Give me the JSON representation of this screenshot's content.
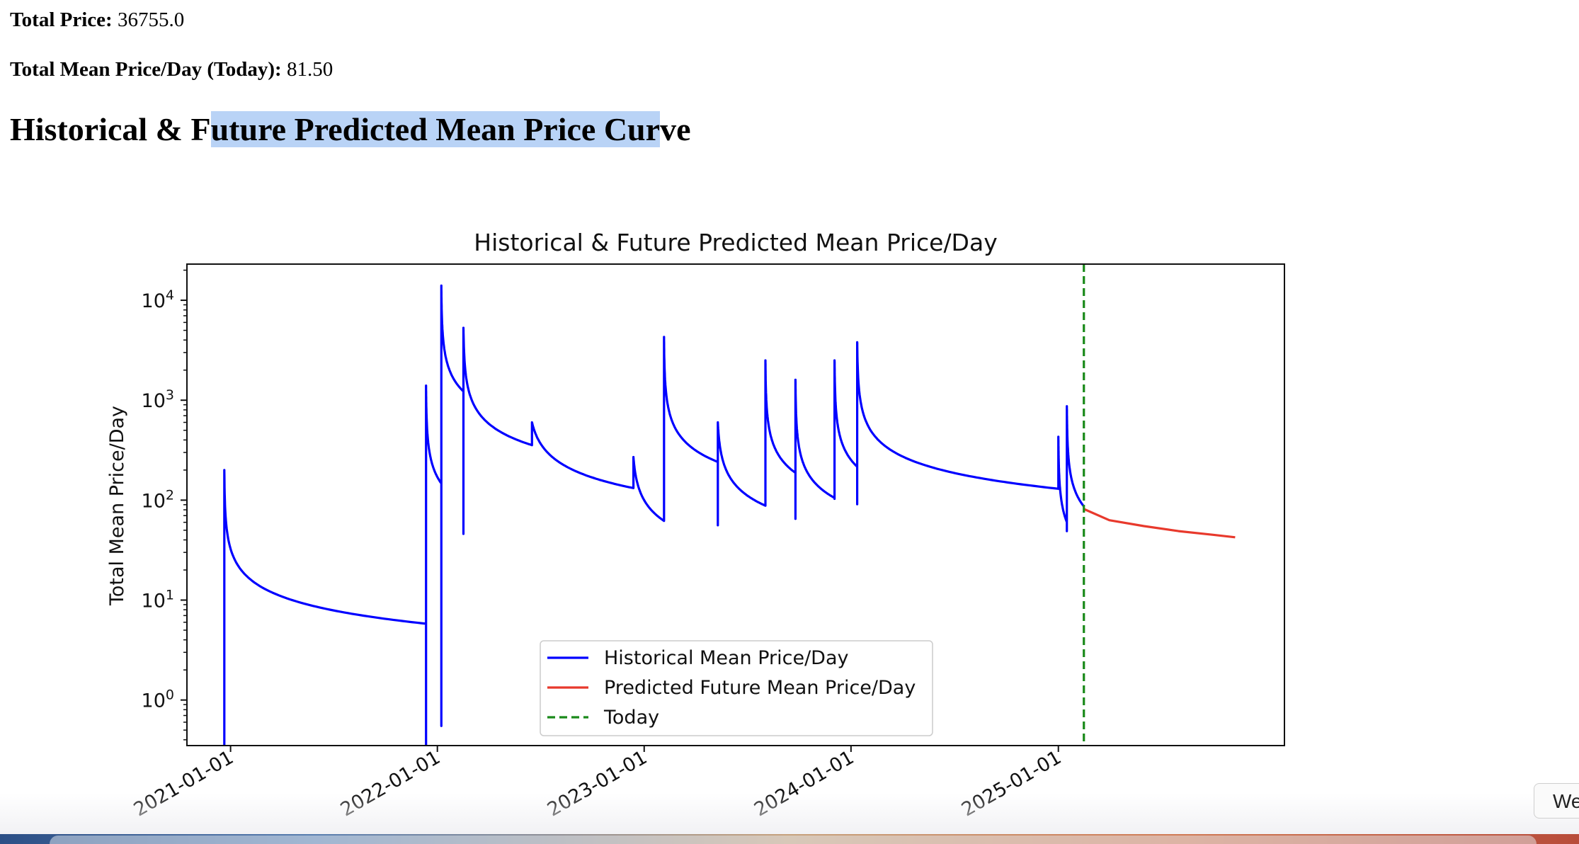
{
  "stats": {
    "total_price_label": "Total Price:",
    "total_price_value": "36755.0",
    "mean_today_label": "Total Mean Price/Day (Today):",
    "mean_today_value": "81.50"
  },
  "page": {
    "title_before": "Historical & F",
    "title_selected": "uture Predicted Mean Price Cur",
    "title_after": "ve",
    "corner_chip": "We"
  },
  "chart_data": {
    "type": "line",
    "title": "Historical & Future Predicted Mean Price/Day",
    "xlabel": "",
    "ylabel": "Total Mean Price/Day",
    "yscale": "log",
    "ylim": [
      0.35,
      23000
    ],
    "xlim": [
      "2020-10-16",
      "2026-02-04"
    ],
    "grid": false,
    "legend_position": "lower center",
    "x_ticks": [
      "2021-01-01",
      "2022-01-01",
      "2023-01-01",
      "2024-01-01",
      "2025-01-01"
    ],
    "y_ticks": [
      {
        "value": 1,
        "base": "10",
        "exp": "0"
      },
      {
        "value": 10,
        "base": "10",
        "exp": "1"
      },
      {
        "value": 100,
        "base": "10",
        "exp": "2"
      },
      {
        "value": 1000,
        "base": "10",
        "exp": "3"
      },
      {
        "value": 10000,
        "base": "10",
        "exp": "4"
      }
    ],
    "colors": {
      "historical": "#0000ff",
      "predicted": "#e8392c",
      "today": "#1a8a1a"
    },
    "series": [
      {
        "name": "Historical Mean Price/Day",
        "color": "#0000ff",
        "spikes": [
          {
            "date": "2020-12-21",
            "peak": 200,
            "floor": 0.2
          },
          {
            "date": "2021-12-12",
            "peak": 1400,
            "floor": 0.55
          },
          {
            "date": "2022-01-08",
            "peak": 14000,
            "floor": 46
          },
          {
            "date": "2022-02-16",
            "peak": 5300,
            "floor": 355
          },
          {
            "date": "2022-06-17",
            "peak": 600,
            "floor": 132
          },
          {
            "date": "2022-12-13",
            "peak": 270,
            "floor": 62
          },
          {
            "date": "2023-02-05",
            "peak": 4300,
            "floor": 56
          },
          {
            "date": "2023-05-11",
            "peak": 600,
            "floor": 88
          },
          {
            "date": "2023-08-03",
            "peak": 2500,
            "floor": 65
          },
          {
            "date": "2023-09-25",
            "peak": 1600,
            "floor": 103
          },
          {
            "date": "2023-12-03",
            "peak": 2500,
            "floor": 91
          },
          {
            "date": "2024-01-12",
            "peak": 3800,
            "floor": 130
          },
          {
            "date": "2025-01-01",
            "peak": 430,
            "floor": 49
          },
          {
            "date": "2025-01-16",
            "peak": 870,
            "floor": 72
          }
        ],
        "end": {
          "date": "2025-02-15",
          "value": 81.5
        }
      },
      {
        "name": "Predicted Future Mean Price/Day",
        "color": "#e8392c",
        "points": [
          {
            "x": "2025-02-15",
            "y": 81.5
          },
          {
            "x": "2025-04-01",
            "y": 63
          },
          {
            "x": "2025-06-01",
            "y": 55
          },
          {
            "x": "2025-08-01",
            "y": 49
          },
          {
            "x": "2025-10-01",
            "y": 45
          },
          {
            "x": "2025-11-09",
            "y": 42.5
          }
        ]
      }
    ],
    "today": {
      "name": "Today",
      "date": "2025-02-15",
      "style": "dashed"
    }
  }
}
